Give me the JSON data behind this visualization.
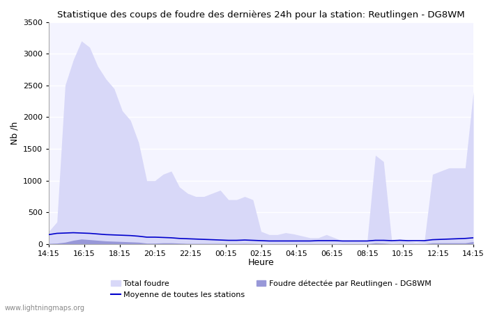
{
  "title": "Statistique des coups de foudre des dernières 24h pour la station: Reutlingen - DG8WM",
  "ylabel": "Nb /h",
  "xlabel": "Heure",
  "watermark": "www.lightningmaps.org",
  "ylim": [
    0,
    3500
  ],
  "yticks": [
    0,
    500,
    1000,
    1500,
    2000,
    2500,
    3000,
    3500
  ],
  "xtick_labels": [
    "14:15",
    "16:15",
    "18:15",
    "20:15",
    "22:15",
    "00:15",
    "02:15",
    "04:15",
    "06:15",
    "08:15",
    "10:15",
    "12:15",
    "14:15"
  ],
  "legend_total": "Total foudre",
  "legend_detected": "Foudre détectée par Reutlingen - DG8WM",
  "legend_moyenne": "Moyenne de toutes les stations",
  "color_total": "#d8d8f8",
  "color_detected": "#9898d8",
  "color_moyenne": "#0000cc",
  "bg_color": "#f4f4ff",
  "grid_color": "#e8e8e8",
  "total_foudre": [
    200,
    350,
    2500,
    2900,
    3200,
    3100,
    2800,
    2600,
    2450,
    2100,
    1950,
    1600,
    1000,
    1000,
    1100,
    1150,
    900,
    800,
    750,
    750,
    800,
    850,
    700,
    700,
    750,
    700,
    200,
    150,
    150,
    180,
    160,
    130,
    100,
    100,
    150,
    100,
    50,
    50,
    50,
    60,
    1400,
    1300,
    50,
    80,
    50,
    30,
    50,
    1100,
    1150,
    1200,
    1200,
    1200,
    2400
  ],
  "detected_foudre": [
    10,
    15,
    30,
    60,
    80,
    70,
    60,
    50,
    45,
    40,
    35,
    30,
    15,
    15,
    20,
    20,
    15,
    10,
    10,
    10,
    10,
    10,
    8,
    8,
    10,
    8,
    5,
    5,
    5,
    5,
    5,
    5,
    5,
    5,
    5,
    5,
    5,
    5,
    5,
    5,
    20,
    15,
    5,
    8,
    5,
    5,
    5,
    20,
    20,
    20,
    20,
    20,
    40
  ],
  "moyenne": [
    150,
    170,
    175,
    180,
    175,
    170,
    160,
    150,
    145,
    140,
    135,
    125,
    110,
    110,
    105,
    100,
    90,
    85,
    80,
    75,
    70,
    65,
    60,
    60,
    65,
    60,
    55,
    50,
    50,
    50,
    50,
    50,
    50,
    55,
    55,
    55,
    50,
    50,
    50,
    50,
    60,
    60,
    55,
    60,
    55,
    55,
    55,
    70,
    75,
    80,
    85,
    90,
    100
  ]
}
